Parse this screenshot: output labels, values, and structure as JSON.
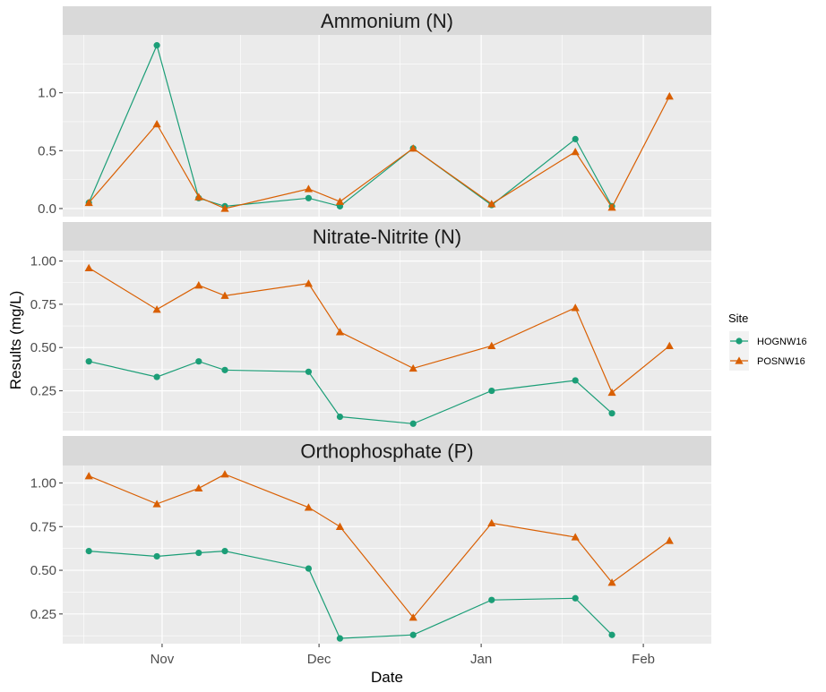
{
  "chart_data": {
    "type": "line",
    "xlabel": "Date",
    "ylabel": "Results (mg/L)",
    "x_ticks": [
      {
        "date": "2022-11-01",
        "label": "Nov"
      },
      {
        "date": "2022-12-01",
        "label": "Dec"
      },
      {
        "date": "2023-01-01",
        "label": "Jan"
      },
      {
        "date": "2023-02-01",
        "label": "Feb"
      }
    ],
    "xlim": [
      "2022-10-13",
      "2023-02-14"
    ],
    "legend": {
      "title": "Site",
      "placement": "right",
      "items": [
        {
          "name": "HOGNW16",
          "color": "#1B9E77",
          "shape": "circle"
        },
        {
          "name": "POSNW16",
          "color": "#D95F02",
          "shape": "triangle"
        }
      ]
    },
    "panels": [
      {
        "title": "Ammonium (N)",
        "ylim": [
          -0.07,
          1.5
        ],
        "y_ticks": [
          0,
          0.5,
          1
        ],
        "y_tick_labels": [
          "0.0",
          "0.5",
          "1.0"
        ],
        "series": [
          {
            "name": "HOGNW16",
            "x": [
              "2022-10-18",
              "2022-10-31",
              "2022-11-08",
              "2022-11-13",
              "2022-11-29",
              "2022-12-05",
              "2022-12-19",
              "2023-01-03",
              "2023-01-19",
              "2023-01-26"
            ],
            "y": [
              0.05,
              1.41,
              0.09,
              0.02,
              0.09,
              0.02,
              0.52,
              0.03,
              0.6,
              0.02
            ]
          },
          {
            "name": "POSNW16",
            "x": [
              "2022-10-18",
              "2022-10-31",
              "2022-11-08",
              "2022-11-13",
              "2022-11-29",
              "2022-12-05",
              "2022-12-19",
              "2023-01-03",
              "2023-01-19",
              "2023-01-26",
              "2023-02-06"
            ],
            "y": [
              0.05,
              0.73,
              0.1,
              0.0,
              0.17,
              0.06,
              0.52,
              0.04,
              0.49,
              0.01,
              0.97
            ]
          }
        ]
      },
      {
        "title": "Nitrate-Nitrite (N)",
        "ylim": [
          0.02,
          1.06
        ],
        "y_ticks": [
          0.25,
          0.5,
          0.75,
          1
        ],
        "y_tick_labels": [
          "0.25",
          "0.50",
          "0.75",
          "1.00"
        ],
        "series": [
          {
            "name": "HOGNW16",
            "x": [
              "2022-10-18",
              "2022-10-31",
              "2022-11-08",
              "2022-11-13",
              "2022-11-29",
              "2022-12-05",
              "2022-12-19",
              "2023-01-03",
              "2023-01-19",
              "2023-01-26"
            ],
            "y": [
              0.42,
              0.33,
              0.42,
              0.37,
              0.36,
              0.1,
              0.06,
              0.25,
              0.31,
              0.12
            ]
          },
          {
            "name": "POSNW16",
            "x": [
              "2022-10-18",
              "2022-10-31",
              "2022-11-08",
              "2022-11-13",
              "2022-11-29",
              "2022-12-05",
              "2022-12-19",
              "2023-01-03",
              "2023-01-19",
              "2023-01-26",
              "2023-02-06"
            ],
            "y": [
              0.96,
              0.72,
              0.86,
              0.8,
              0.87,
              0.59,
              0.38,
              0.51,
              0.73,
              0.24,
              0.51
            ]
          }
        ]
      },
      {
        "title": "Orthophosphate (P)",
        "ylim": [
          0.08,
          1.1
        ],
        "y_ticks": [
          0.25,
          0.5,
          0.75,
          1
        ],
        "y_tick_labels": [
          "0.25",
          "0.50",
          "0.75",
          "1.00"
        ],
        "series": [
          {
            "name": "HOGNW16",
            "x": [
              "2022-10-18",
              "2022-10-31",
              "2022-11-08",
              "2022-11-13",
              "2022-11-29",
              "2022-12-05",
              "2022-12-19",
              "2023-01-03",
              "2023-01-19",
              "2023-01-26"
            ],
            "y": [
              0.61,
              0.58,
              0.6,
              0.61,
              0.51,
              0.11,
              0.13,
              0.33,
              0.34,
              0.13
            ]
          },
          {
            "name": "POSNW16",
            "x": [
              "2022-10-18",
              "2022-10-31",
              "2022-11-08",
              "2022-11-13",
              "2022-11-29",
              "2022-12-05",
              "2022-12-19",
              "2023-01-03",
              "2023-01-19",
              "2023-01-26",
              "2023-02-06"
            ],
            "y": [
              1.04,
              0.88,
              0.97,
              1.05,
              0.86,
              0.75,
              0.23,
              0.77,
              0.69,
              0.43,
              0.67
            ]
          }
        ]
      }
    ]
  }
}
